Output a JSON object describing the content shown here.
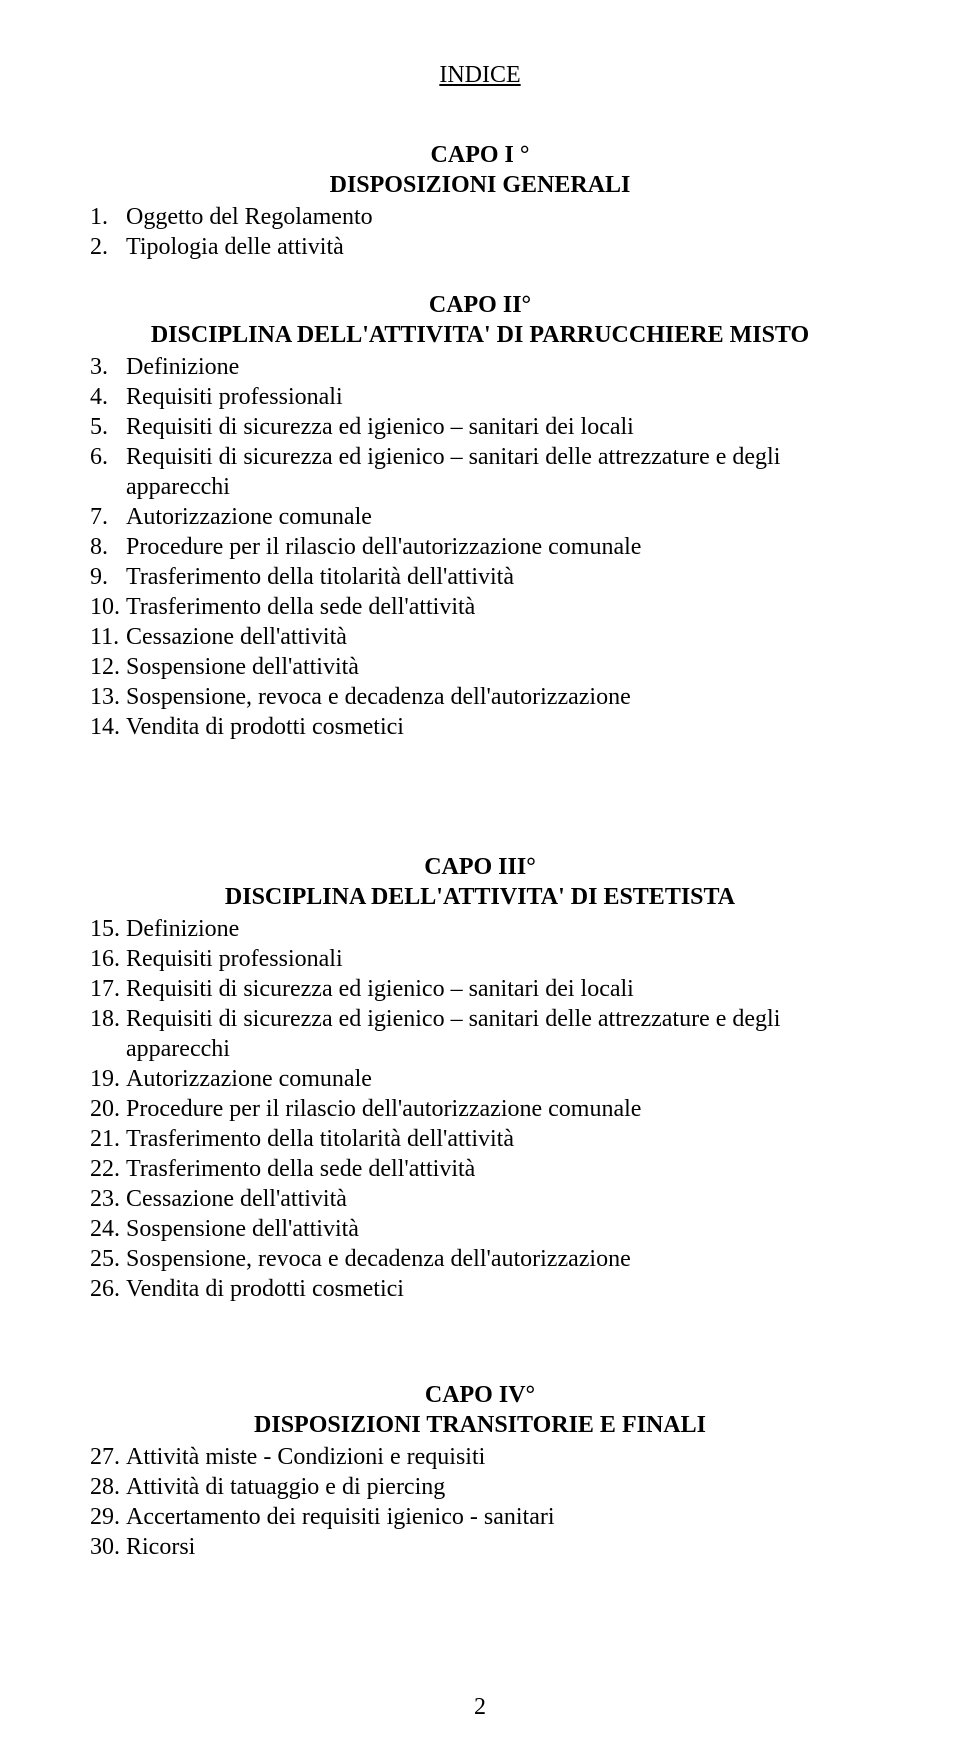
{
  "title": "INDICE",
  "capo1": {
    "heading": "CAPO I °",
    "sub": "DISPOSIZIONI GENERALI",
    "items": [
      {
        "n": "1.",
        "t": "Oggetto del Regolamento"
      },
      {
        "n": "2.",
        "t": "Tipologia delle attività"
      }
    ]
  },
  "capo2": {
    "heading": "CAPO II°",
    "sub": "DISCIPLINA DELL'ATTIVITA' DI PARRUCCHIERE MISTO",
    "items": [
      {
        "n": "3.",
        "t": "Definizione"
      },
      {
        "n": "4.",
        "t": "Requisiti professionali"
      },
      {
        "n": "5.",
        "t": "Requisiti di sicurezza ed igienico – sanitari dei locali"
      },
      {
        "n": "6.",
        "t": "Requisiti di sicurezza ed igienico – sanitari delle attrezzature e degli apparecchi"
      },
      {
        "n": "7.",
        "t": "Autorizzazione comunale"
      },
      {
        "n": "8.",
        "t": "Procedure per il rilascio dell'autorizzazione comunale"
      },
      {
        "n": "9.",
        "t": "Trasferimento della titolarità dell'attività"
      },
      {
        "n": "10.",
        "t": "Trasferimento della sede dell'attività"
      },
      {
        "n": "11.",
        "t": "Cessazione dell'attività"
      },
      {
        "n": "12.",
        "t": "Sospensione dell'attività"
      },
      {
        "n": "13.",
        "t": "Sospensione, revoca e decadenza dell'autorizzazione"
      },
      {
        "n": "14.",
        "t": "Vendita di prodotti cosmetici"
      }
    ]
  },
  "capo3": {
    "heading": "CAPO III°",
    "sub": "DISCIPLINA DELL'ATTIVITA' DI ESTETISTA",
    "items": [
      {
        "n": "15.",
        "t": "Definizione"
      },
      {
        "n": "16.",
        "t": "Requisiti professionali"
      },
      {
        "n": "17.",
        "t": "Requisiti di sicurezza ed igienico – sanitari dei locali"
      },
      {
        "n": "18.",
        "t": "Requisiti di sicurezza ed igienico – sanitari delle attrezzature e degli apparecchi"
      },
      {
        "n": "19.",
        "t": "Autorizzazione comunale"
      },
      {
        "n": "20.",
        "t": "Procedure per il rilascio dell'autorizzazione comunale"
      },
      {
        "n": "21.",
        "t": "Trasferimento della titolarità dell'attività"
      },
      {
        "n": "22.",
        "t": "Trasferimento della sede dell'attività"
      },
      {
        "n": "23.",
        "t": "Cessazione dell'attività"
      },
      {
        "n": "24.",
        "t": "Sospensione dell'attività"
      },
      {
        "n": "25.",
        "t": "Sospensione, revoca e decadenza dell'autorizzazione"
      },
      {
        "n": "26.",
        "t": "Vendita di prodotti cosmetici"
      }
    ]
  },
  "capo4": {
    "heading": "CAPO IV°",
    "sub": "DISPOSIZIONI TRANSITORIE E FINALI",
    "items": [
      {
        "n": "27.",
        "t": "Attività miste - Condizioni e requisiti"
      },
      {
        "n": "28.",
        "t": "Attività di tatuaggio e di piercing"
      },
      {
        "n": "29.",
        "t": "Accertamento dei requisiti igienico - sanitari"
      },
      {
        "n": "30.",
        "t": "Ricorsi"
      }
    ]
  },
  "page_number": "2"
}
